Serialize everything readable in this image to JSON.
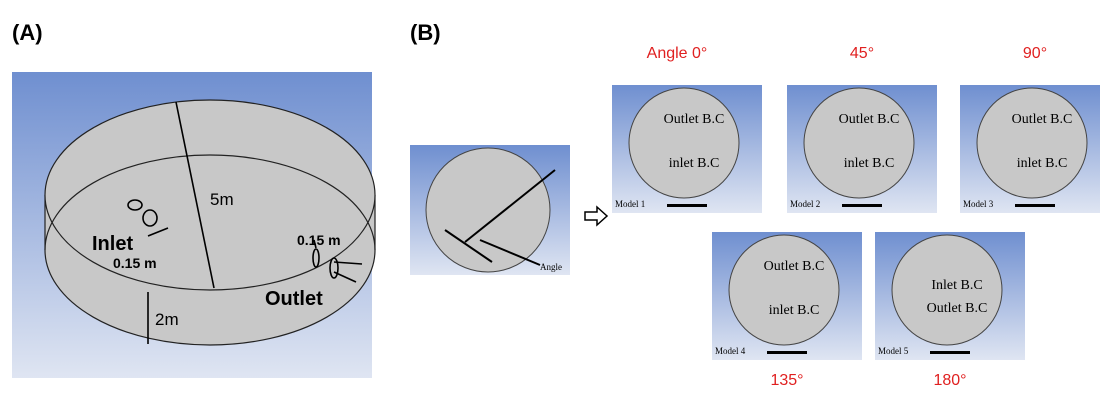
{
  "panel_a": {
    "label": "(A)",
    "diameter": "5m",
    "inlet": "Inlet",
    "inlet_size": "0.15 m",
    "outlet_size": "0.15 m",
    "outlet": "Outlet",
    "height": "2m"
  },
  "panel_b": {
    "label": "(B)",
    "schematic_label": "Angle",
    "models": [
      {
        "angle": "Angle 0°",
        "name": "Model 1",
        "labels": [
          "Outlet B.C",
          "inlet B.C"
        ]
      },
      {
        "angle": "45°",
        "name": "Model 2",
        "labels": [
          "Outlet B.C",
          "inlet B.C"
        ]
      },
      {
        "angle": "90°",
        "name": "Model 3",
        "labels": [
          "Outlet B.C",
          "inlet B.C"
        ]
      },
      {
        "angle": "135°",
        "name": "Model 4",
        "labels": [
          "Outlet B.C",
          "inlet B.C"
        ]
      },
      {
        "angle": "180°",
        "name": "Model 5",
        "labels": [
          "Inlet B.C",
          "Outlet B.C"
        ]
      }
    ]
  }
}
